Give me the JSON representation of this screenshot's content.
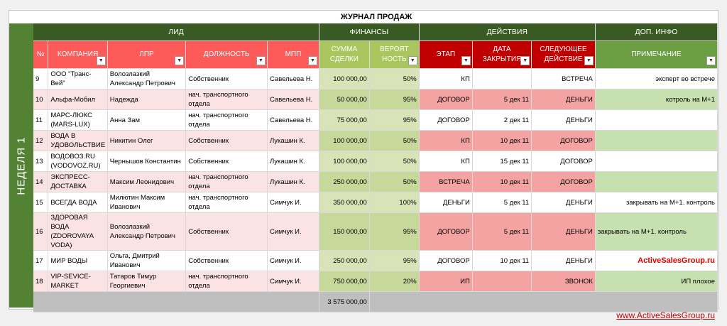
{
  "title": "ЖУРНАЛ ПРОДАЖ",
  "week_label": "НЕДЕЛЯ  1",
  "groups": {
    "lead": "ЛИД",
    "finance": "ФИНАНСЫ",
    "actions": "ДЕЙСТВИЯ",
    "info": "ДОП. ИНФО"
  },
  "columns": {
    "num": "№",
    "company": "КОМПАНИЯ",
    "lpr": "ЛПР",
    "position": "ДОЛЖНОСТЬ",
    "mpp": "МПП",
    "sum": "СУММА СДЕЛКИ",
    "prob": "ВЕРОЯТ НОСТЬ",
    "stage": "ЭТАП",
    "close_date": "ДАТА ЗАКРЫТИЯ",
    "next_action": "СЛЕДУЮЩЕЕ ДЕЙСТВИЕ",
    "note": "ПРИМЕЧАНИЕ"
  },
  "rows": [
    {
      "num": "9",
      "company": "ООО \"Транс-Вей\"",
      "lpr": "Волозлазкий Александр Петрович",
      "position": "Собственник",
      "mpp": "Савельева Н.",
      "sum": "100 000,00",
      "prob": "50%",
      "stage": "КП",
      "close_date": "",
      "next_action": "ВСТРЕЧА",
      "note": "эксперт во встрече"
    },
    {
      "num": "10",
      "company": "Альфа-Мобил",
      "lpr": "Надежда",
      "position": "нач. транспортного отдела",
      "mpp": "Савельева Н.",
      "sum": "50 000,00",
      "prob": "95%",
      "stage": "ДОГОВОР",
      "close_date": "5 дек 11",
      "next_action": "ДЕНЬГИ",
      "note": "котроль на М+1"
    },
    {
      "num": "11",
      "company": "МАРС-ЛЮКС (MARS-LUX)",
      "lpr": "Анна Зам",
      "position": "нач. транспортного отдела",
      "mpp": "Савельева Н.",
      "sum": "75 000,00",
      "prob": "95%",
      "stage": "ДОГОВОР",
      "close_date": "2 дек 11",
      "next_action": "ДЕНЬГИ",
      "note": ""
    },
    {
      "num": "12",
      "company": "ВОДА В УДОВОЛЬСТВИЕ",
      "lpr": "Никитин Олег",
      "position": "Собственник",
      "mpp": "Лукашин К.",
      "sum": "100 000,00",
      "prob": "50%",
      "stage": "КП",
      "close_date": "10 дек 11",
      "next_action": "ДОГОВОР",
      "note": ""
    },
    {
      "num": "13",
      "company": "ВОДОВОЗ.RU (VODOVOZ.RU)",
      "lpr": "Чернышов Константин",
      "position": "Собственник",
      "mpp": "Лукашин К.",
      "sum": "100 000,00",
      "prob": "50%",
      "stage": "КП",
      "close_date": "15 дек 11",
      "next_action": "ДОГОВОР",
      "note": ""
    },
    {
      "num": "14",
      "company": "ЭКСПРЕСС-ДОСТАВКА",
      "lpr": "Максим Леонидович",
      "position": "нач. транспортного отдела",
      "mpp": "Лукашин К.",
      "sum": "250 000,00",
      "prob": "50%",
      "stage": "ВСТРЕЧА",
      "close_date": "10 дек 11",
      "next_action": "ДОГОВОР",
      "note": ""
    },
    {
      "num": "15",
      "company": "ВСЕГДА ВОДА",
      "lpr": "Милютин Максим Иванович",
      "position": "нач. транспортного отдела",
      "mpp": "Симчук И.",
      "sum": "350 000,00",
      "prob": "100%",
      "stage": "ДЕНЬГИ",
      "close_date": "5 дек 11",
      "next_action": "ДЕНЬГИ",
      "note": "закрывать на М+1. контроль"
    },
    {
      "num": "16",
      "company": "ЗДОРОВАЯ ВОДА (ZDOROVAYA VODA)",
      "lpr": "Волозлазкий Александр Петрович",
      "position": "Собственник",
      "mpp": "Симчук И.",
      "sum": "150 000,00",
      "prob": "95%",
      "stage": "ДОГОВОР",
      "close_date": "5 дек 11",
      "next_action": "ДЕНЬГИ",
      "note": "закрывать на М+1. контроль"
    },
    {
      "num": "17",
      "company": "МИР ВОДЫ",
      "lpr": "Ольга, Дмитрий Иванович",
      "position": "Собственник",
      "mpp": "Симчук И.",
      "sum": "250 000,00",
      "prob": "95%",
      "stage": "ДОГОВОР",
      "close_date": "10 дек 11",
      "next_action": "ДЕНЬГИ",
      "note": "ActiveSalesGroup.ru"
    },
    {
      "num": "18",
      "company": "VIP-SEVICE-MARKET",
      "lpr": "Татаров Тимур Георгиевич",
      "position": "нач. транспортного отдела",
      "mpp": "Симчук И.",
      "sum": "750 000,00",
      "prob": "20%",
      "stage": "ИП",
      "close_date": "",
      "next_action": "ЗВОНОК",
      "note": "ИП плохое"
    }
  ],
  "total": "3 575 000,00",
  "footer_link": "www.ActiveSalesGroup.ru",
  "colors": {
    "week_bg": "#548235",
    "lead_header": "#ff5a5a",
    "finance_header": "#a9c75e",
    "actions_header": "#c00000",
    "info_header": "#6b9e43"
  }
}
